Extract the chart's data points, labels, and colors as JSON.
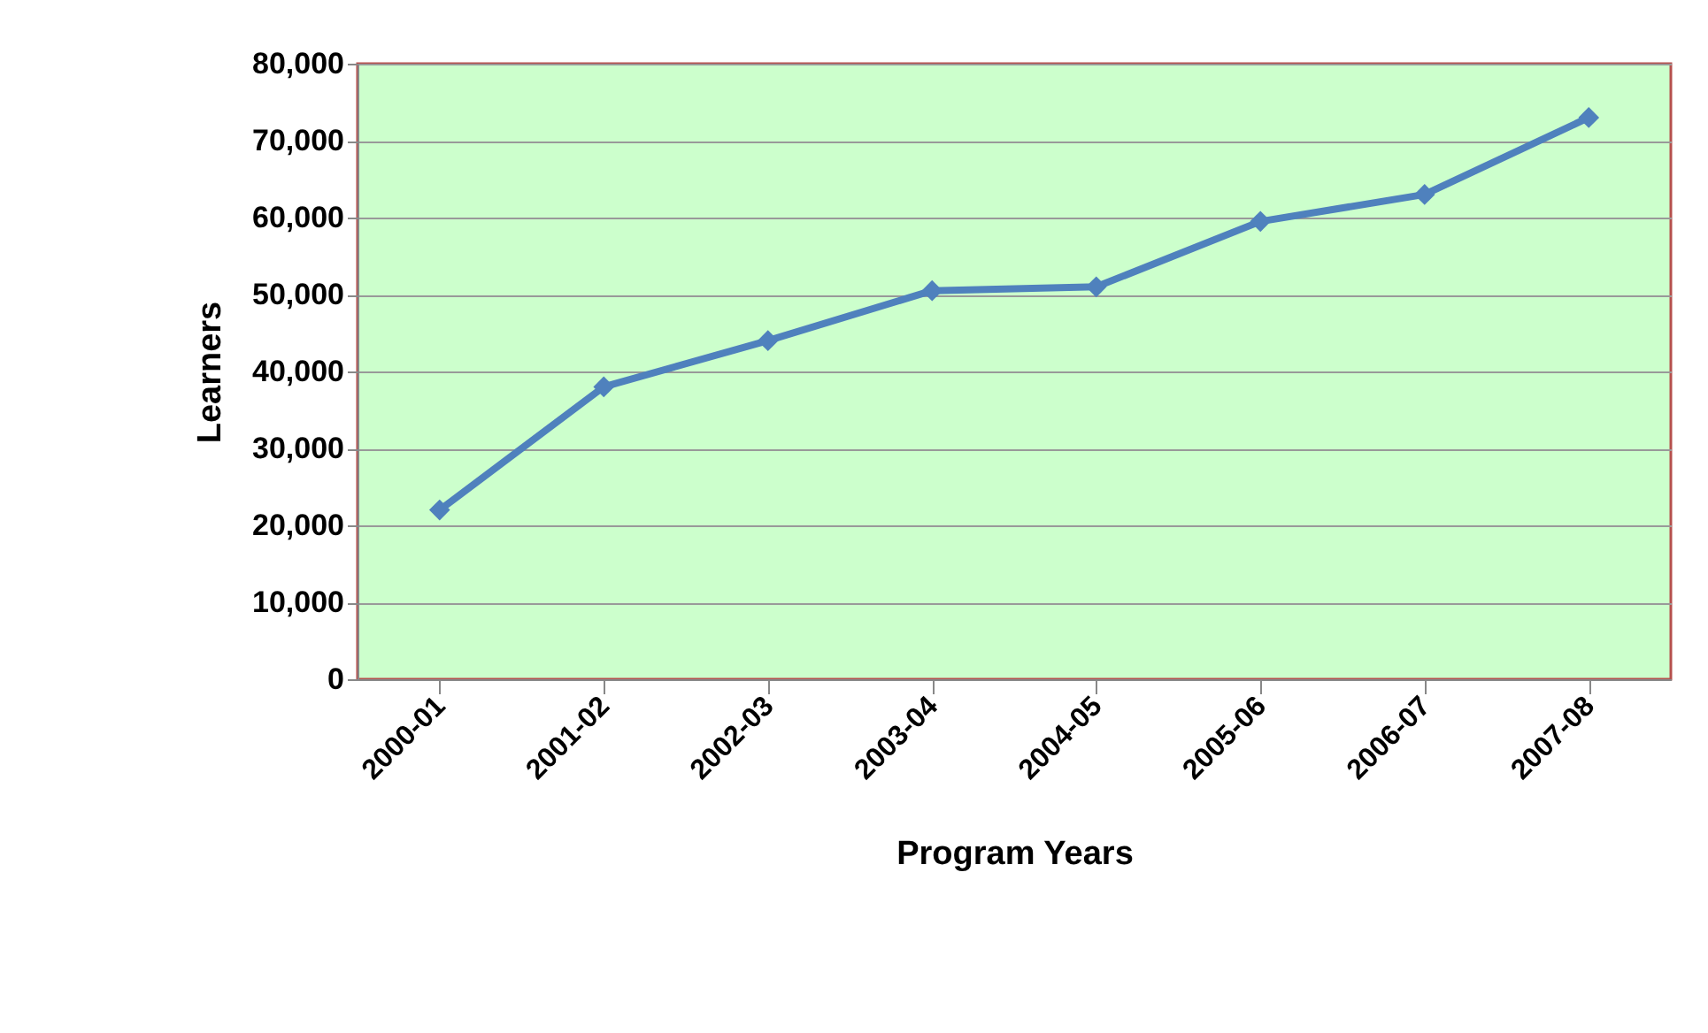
{
  "chart_data": {
    "type": "line",
    "xlabel": "Program Years",
    "ylabel": "Learners",
    "categories": [
      "2000-01",
      "2001-02",
      "2002-03",
      "2003-04",
      "2004-05",
      "2005-06",
      "2006-07",
      "2007-08"
    ],
    "series": [
      {
        "color": "#4f81bd",
        "values": [
          22000,
          38000,
          44000,
          50500,
          51000,
          59500,
          63000,
          73000
        ]
      }
    ],
    "ylim": [
      0,
      80000
    ],
    "yticks": [
      {
        "value": 0,
        "label": "0"
      },
      {
        "value": 10000,
        "label": "10,000"
      },
      {
        "value": 20000,
        "label": "20,000"
      },
      {
        "value": 30000,
        "label": "30,000"
      },
      {
        "value": 40000,
        "label": "40,000"
      },
      {
        "value": 50000,
        "label": "50,000"
      },
      {
        "value": 60000,
        "label": "60,000"
      },
      {
        "value": 70000,
        "label": "70,000"
      },
      {
        "value": 80000,
        "label": "80,000"
      }
    ],
    "grid": "y",
    "marker": "diamond",
    "line_style": "solid",
    "legend": false
  }
}
